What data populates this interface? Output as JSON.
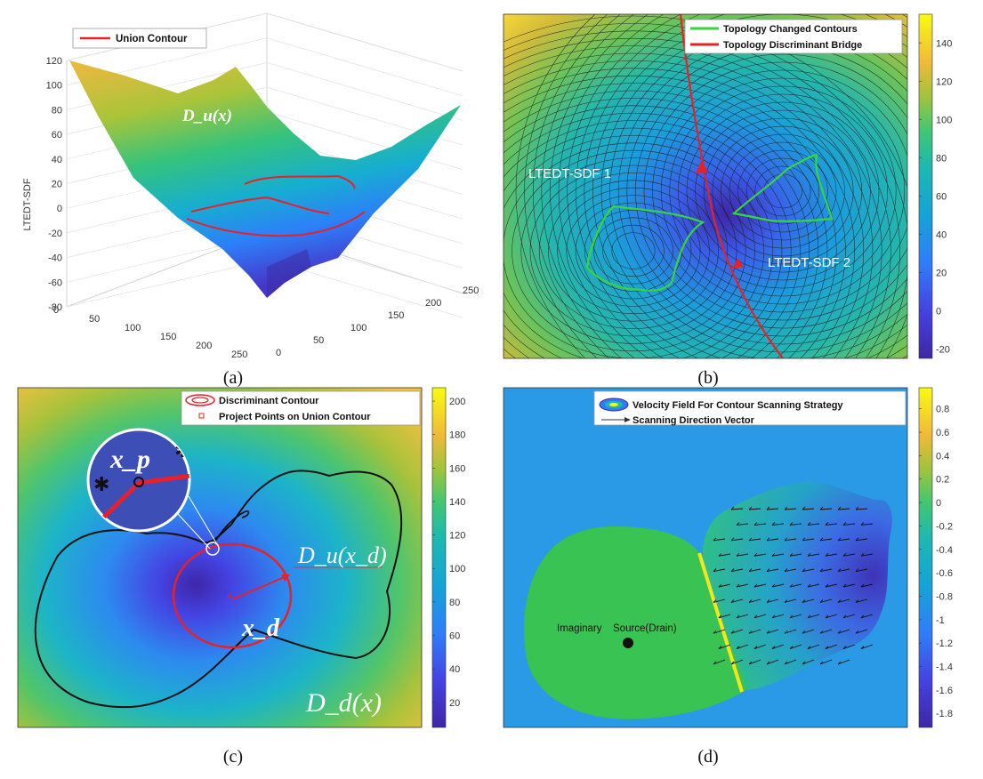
{
  "chart_data": [
    {
      "panel": "(a)",
      "type": "surface3d",
      "legend": [
        "Union Contour"
      ],
      "ylabel": "LTEDT-SDF",
      "zlim": [
        -80,
        120
      ],
      "z_ticks": [
        "120",
        "100",
        "80",
        "60",
        "40",
        "20",
        "0",
        "-20",
        "-40",
        "-60",
        "-80"
      ],
      "x_ticks": [
        "0",
        "50",
        "100",
        "150",
        "200",
        "250"
      ],
      "y_ticks": [
        "0",
        "50",
        "100",
        "150",
        "200",
        "250"
      ],
      "annotation": "D_u(x)",
      "caption": "(a)"
    },
    {
      "panel": "(b)",
      "type": "heatmap",
      "legend": [
        "Topology Changed Contours",
        "Topology Discriminant Bridge"
      ],
      "annotations": [
        "LTEDT-SDF 1",
        "LTEDT-SDF 2"
      ],
      "colorbar_ticks": [
        "140",
        "120",
        "100",
        "80",
        "60",
        "40",
        "20",
        "0",
        "-20"
      ],
      "colorbar_range": [
        -25,
        155
      ],
      "caption": "(b)"
    },
    {
      "panel": "(c)",
      "type": "heatmap",
      "legend": [
        "Discriminant Contour",
        "Project Points on Union Contour"
      ],
      "annotations": [
        "D_u(x_d)",
        "x_d",
        "x_p",
        "D_d(x)"
      ],
      "colorbar_ticks": [
        "200",
        "180",
        "160",
        "140",
        "120",
        "100",
        "80",
        "60",
        "40",
        "20"
      ],
      "colorbar_range": [
        5,
        208
      ],
      "caption": "(c)"
    },
    {
      "panel": "(d)",
      "type": "heatmap",
      "legend": [
        "Velocity Field For Contour Scanning Strategy",
        "Scanning Direction Vector"
      ],
      "annotations": [
        "Imaginary",
        "Source(Drain)"
      ],
      "colorbar_ticks": [
        "0.8",
        "0.6",
        "0.4",
        "0.2",
        "0",
        "-0.2",
        "-0.4",
        "-0.6",
        "-0.8",
        "-1",
        "-1.2",
        "-1.4",
        "-1.6",
        "-1.8"
      ],
      "colorbar_range": [
        -1.92,
        0.98
      ],
      "caption": "(d)"
    }
  ],
  "colors": {
    "parula_dark": "#3e26a8",
    "parula_light": "#f9fb0e",
    "contour_red": "#e8202a",
    "contour_green": "#37d63c"
  }
}
